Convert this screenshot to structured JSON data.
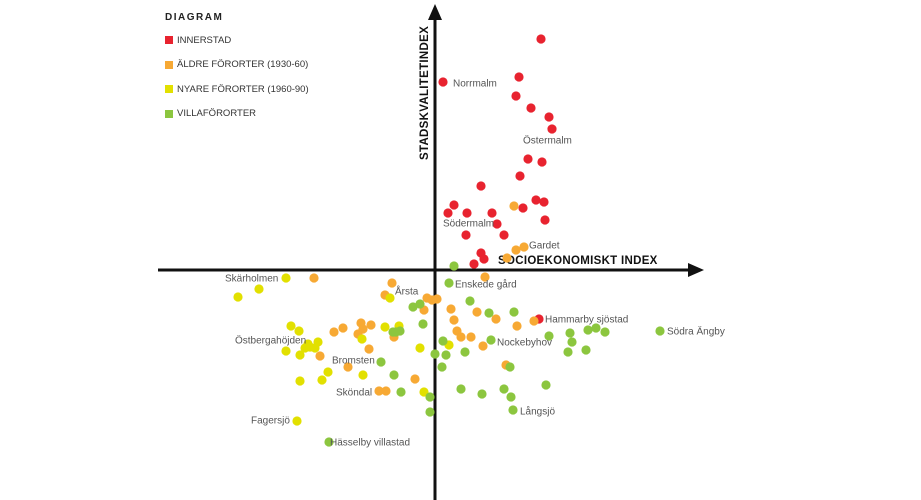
{
  "chart_data": {
    "type": "scatter",
    "title": "DIAGRAM",
    "xlabel": "SOCIOEKONOMISKT INDEX",
    "ylabel": "STADSKVALITETINDEX",
    "xlim": [
      -277,
      268
    ],
    "ylim": [
      -230,
      265
    ],
    "grid": false,
    "legend_position": "top-left",
    "series": [
      {
        "name": "INNERSTAD",
        "color": "#e8232f",
        "points": [
          [
            106,
            231
          ],
          [
            8,
            188
          ],
          [
            84,
            193
          ],
          [
            81,
            174
          ],
          [
            96,
            162
          ],
          [
            114,
            153
          ],
          [
            117,
            141
          ],
          [
            93,
            111
          ],
          [
            107,
            108
          ],
          [
            85,
            94
          ],
          [
            46,
            84
          ],
          [
            101,
            70
          ],
          [
            109,
            68
          ],
          [
            88,
            62
          ],
          [
            19,
            65
          ],
          [
            13,
            57
          ],
          [
            32,
            57
          ],
          [
            57,
            57
          ],
          [
            62,
            46
          ],
          [
            110,
            50
          ],
          [
            31,
            35
          ],
          [
            69,
            35
          ],
          [
            46,
            17
          ],
          [
            49,
            11
          ],
          [
            39,
            6
          ],
          [
            104,
            -49
          ]
        ]
      },
      {
        "name": "ÄLDRE FÖRORTER  (1930-60)",
        "color": "#f7a934",
        "points": [
          [
            79,
            64
          ],
          [
            72,
            12
          ],
          [
            81,
            20
          ],
          [
            89,
            23
          ],
          [
            50,
            -7
          ],
          [
            2,
            -29
          ],
          [
            16,
            -39
          ],
          [
            19,
            -50
          ],
          [
            42,
            -42
          ],
          [
            61,
            -49
          ],
          [
            82,
            -56
          ],
          [
            99,
            -51
          ],
          [
            22,
            -61
          ],
          [
            26,
            -67
          ],
          [
            36,
            -67
          ],
          [
            48,
            -76
          ],
          [
            71,
            -95
          ],
          [
            -121,
            -8
          ],
          [
            -43,
            -13
          ],
          [
            -50,
            -25
          ],
          [
            -8,
            -28
          ],
          [
            -3,
            -30
          ],
          [
            -11,
            -40
          ],
          [
            -101,
            -62
          ],
          [
            -92,
            -58
          ],
          [
            -74,
            -53
          ],
          [
            -64,
            -55
          ],
          [
            -77,
            -64
          ],
          [
            -72,
            -59
          ],
          [
            -41,
            -67
          ],
          [
            -115,
            -86
          ],
          [
            -66,
            -79
          ],
          [
            -87,
            -97
          ],
          [
            -20,
            -109
          ],
          [
            -56,
            -121
          ],
          [
            -49,
            -121
          ]
        ]
      },
      {
        "name": "NYARE FÖRORTER (1960-90)",
        "color": "#e2e000",
        "points": [
          [
            14,
            -75
          ],
          [
            -149,
            -8
          ],
          [
            -176,
            -19
          ],
          [
            -197,
            -27
          ],
          [
            -45,
            -28
          ],
          [
            -144,
            -56
          ],
          [
            -136,
            -61
          ],
          [
            -50,
            -57
          ],
          [
            -36,
            -56
          ],
          [
            -73,
            -69
          ],
          [
            -127,
            -74
          ],
          [
            -117,
            -72
          ],
          [
            -125,
            -77
          ],
          [
            -120,
            -78
          ],
          [
            -130,
            -78
          ],
          [
            -149,
            -81
          ],
          [
            -135,
            -85
          ],
          [
            -107,
            -102
          ],
          [
            -113,
            -110
          ],
          [
            -135,
            -111
          ],
          [
            -72,
            -105
          ],
          [
            -15,
            -78
          ],
          [
            -11,
            -122
          ],
          [
            -138,
            -151
          ]
        ]
      },
      {
        "name": "VILLAFÖRORTER",
        "color": "#8cc63f",
        "points": [
          [
            19,
            4
          ],
          [
            14,
            -13
          ],
          [
            35,
            -31
          ],
          [
            54,
            -43
          ],
          [
            79,
            -42
          ],
          [
            114,
            -66
          ],
          [
            135,
            -63
          ],
          [
            153,
            -60
          ],
          [
            161,
            -58
          ],
          [
            170,
            -62
          ],
          [
            137,
            -72
          ],
          [
            133,
            -82
          ],
          [
            151,
            -80
          ],
          [
            225,
            -61
          ],
          [
            56,
            -70
          ],
          [
            8,
            -71
          ],
          [
            11,
            -85
          ],
          [
            30,
            -82
          ],
          [
            0,
            -84
          ],
          [
            7,
            -97
          ],
          [
            75,
            -97
          ],
          [
            26,
            -119
          ],
          [
            47,
            -124
          ],
          [
            69,
            -119
          ],
          [
            76,
            -127
          ],
          [
            111,
            -115
          ],
          [
            78,
            -140
          ],
          [
            -5,
            -127
          ],
          [
            -5,
            -142
          ],
          [
            -22,
            -37
          ],
          [
            -15,
            -34
          ],
          [
            -12,
            -54
          ],
          [
            -42,
            -62
          ],
          [
            -35,
            -61
          ],
          [
            -39,
            -62
          ],
          [
            -54,
            -92
          ],
          [
            -41,
            -105
          ],
          [
            -34,
            -122
          ],
          [
            -106,
            -172
          ]
        ]
      }
    ],
    "annotations": [
      {
        "text": "Norrmalm",
        "x": 18,
        "y": 187
      },
      {
        "text": "Östermalm",
        "x": 88,
        "y": 130
      },
      {
        "text": "Södermalm",
        "x": 8,
        "y": 47
      },
      {
        "text": "Gardet",
        "x": 94,
        "y": 25
      },
      {
        "text": "Enskede gård",
        "x": 20,
        "y": -14
      },
      {
        "text": "Årsta",
        "x": -40,
        "y": -21
      },
      {
        "text": "Skärholmen",
        "x": -210,
        "y": -8
      },
      {
        "text": "Hammarby sjöstad",
        "x": 110,
        "y": -49
      },
      {
        "text": "Södra Ängby",
        "x": 232,
        "y": -61
      },
      {
        "text": "Nockebyhov",
        "x": 62,
        "y": -72
      },
      {
        "text": "Östbergahöjden",
        "x": -200,
        "y": -70
      },
      {
        "text": "Bromsten",
        "x": -103,
        "y": -90
      },
      {
        "text": "Sköndal",
        "x": -99,
        "y": -122
      },
      {
        "text": "Långsjö",
        "x": 85,
        "y": -141
      },
      {
        "text": "Fagersjö",
        "x": -184,
        "y": -150
      },
      {
        "text": "Hässelby villastad",
        "x": -105,
        "y": -172
      }
    ]
  }
}
